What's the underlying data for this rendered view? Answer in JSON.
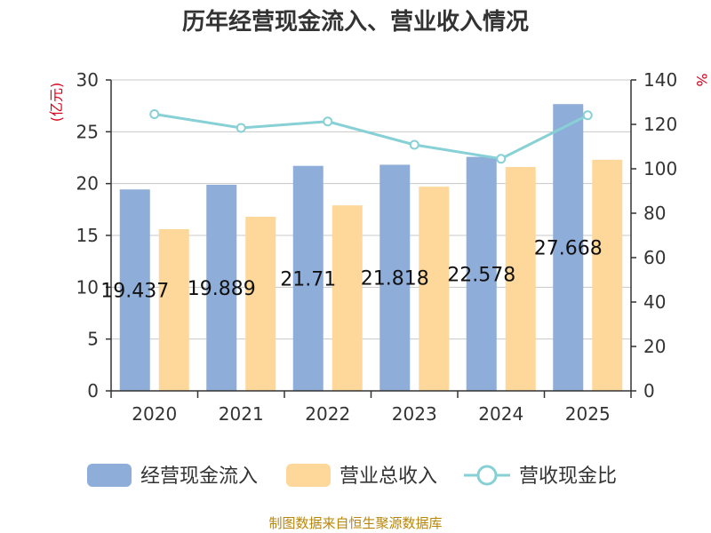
{
  "chart_data": {
    "type": "bar",
    "title": "历年经营现金流入、营业收入情况",
    "categories": [
      "2020",
      "2021",
      "2022",
      "2023",
      "2024",
      "2025"
    ],
    "series": [
      {
        "name": "经营现金流入",
        "values": [
          19.437,
          19.889,
          21.71,
          21.818,
          22.578,
          27.668
        ],
        "data_labels": [
          "19.437",
          "19.889",
          "21.71",
          "21.818",
          "22.578",
          "27.668"
        ],
        "color": "#8eadd9",
        "axis": "left"
      },
      {
        "name": "营业总收入",
        "values": [
          15.6,
          16.8,
          17.9,
          19.7,
          21.6,
          22.3
        ],
        "color": "#fdd89a",
        "axis": "left"
      },
      {
        "name": "营收现金比",
        "type": "line",
        "values": [
          124.6,
          118.4,
          121.3,
          110.8,
          104.5,
          124.1
        ],
        "color": "#86d0d6",
        "axis": "right"
      }
    ],
    "y_left": {
      "unit_label": "(亿元)",
      "ylim": [
        0,
        30
      ],
      "ticks": [
        0,
        5,
        10,
        15,
        20,
        25,
        30
      ]
    },
    "y_right": {
      "unit_label": "%",
      "ylim": [
        0,
        140
      ],
      "ticks": [
        0,
        20,
        40,
        60,
        80,
        100,
        120,
        140
      ]
    },
    "grid": true,
    "legend_position": "bottom"
  },
  "source": "制图数据来自恒生聚源数据库"
}
